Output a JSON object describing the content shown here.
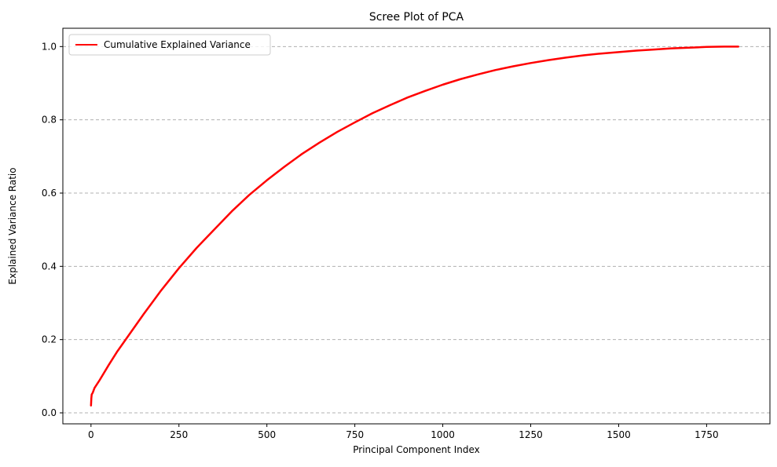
{
  "chart_data": {
    "type": "line",
    "title": "Scree Plot of PCA",
    "xlabel": "Principal Component Index",
    "ylabel": "Explained Variance Ratio",
    "xlim": [
      -80,
      1930
    ],
    "ylim": [
      -0.03,
      1.05
    ],
    "xticks": [
      0,
      250,
      500,
      750,
      1000,
      1250,
      1500,
      1750
    ],
    "yticks": [
      0.0,
      0.2,
      0.4,
      0.6,
      0.8,
      1.0
    ],
    "ytick_format": "1dp",
    "grid": {
      "axis": "y",
      "style": "dashed"
    },
    "legend": {
      "position": "upper-left"
    },
    "series": [
      {
        "name": "Cumulative Explained Variance",
        "color": "#ff0000",
        "x": [
          0,
          1,
          2,
          5,
          10,
          25,
          50,
          75,
          100,
          150,
          200,
          250,
          300,
          350,
          400,
          450,
          500,
          550,
          600,
          650,
          700,
          750,
          800,
          850,
          900,
          950,
          1000,
          1050,
          1100,
          1150,
          1200,
          1250,
          1300,
          1350,
          1400,
          1450,
          1500,
          1550,
          1600,
          1650,
          1700,
          1750,
          1800,
          1840
        ],
        "y": [
          0.02,
          0.04,
          0.05,
          0.055,
          0.068,
          0.09,
          0.13,
          0.168,
          0.202,
          0.27,
          0.335,
          0.395,
          0.45,
          0.5,
          0.55,
          0.595,
          0.635,
          0.672,
          0.707,
          0.738,
          0.767,
          0.793,
          0.818,
          0.84,
          0.861,
          0.879,
          0.896,
          0.911,
          0.924,
          0.936,
          0.946,
          0.955,
          0.963,
          0.97,
          0.976,
          0.981,
          0.985,
          0.989,
          0.992,
          0.995,
          0.997,
          0.999,
          1.0,
          1.0
        ]
      }
    ]
  }
}
